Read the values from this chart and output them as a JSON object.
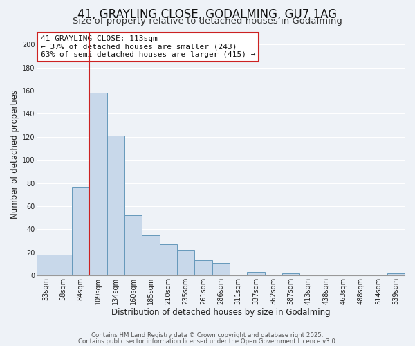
{
  "title": "41, GRAYLING CLOSE, GODALMING, GU7 1AG",
  "subtitle": "Size of property relative to detached houses in Godalming",
  "xlabel": "Distribution of detached houses by size in Godalming",
  "ylabel": "Number of detached properties",
  "bar_labels": [
    "33sqm",
    "58sqm",
    "84sqm",
    "109sqm",
    "134sqm",
    "160sqm",
    "185sqm",
    "210sqm",
    "235sqm",
    "261sqm",
    "286sqm",
    "311sqm",
    "337sqm",
    "362sqm",
    "387sqm",
    "413sqm",
    "438sqm",
    "463sqm",
    "488sqm",
    "514sqm",
    "539sqm"
  ],
  "bar_values": [
    18,
    18,
    77,
    158,
    121,
    52,
    35,
    27,
    22,
    13,
    11,
    0,
    3,
    0,
    2,
    0,
    0,
    0,
    0,
    0,
    2
  ],
  "bar_color": "#c8d8ea",
  "bar_edge_color": "#6699bb",
  "ylim": [
    0,
    210
  ],
  "yticks": [
    0,
    20,
    40,
    60,
    80,
    100,
    120,
    140,
    160,
    180,
    200
  ],
  "vline_index": 3,
  "vline_color": "#cc2222",
  "annotation_title": "41 GRAYLING CLOSE: 113sqm",
  "annotation_line1": "← 37% of detached houses are smaller (243)",
  "annotation_line2": "63% of semi-detached houses are larger (415) →",
  "annotation_box_color": "#ffffff",
  "annotation_border_color": "#cc2222",
  "footnote1": "Contains HM Land Registry data © Crown copyright and database right 2025.",
  "footnote2": "Contains public sector information licensed under the Open Government Licence v3.0.",
  "bg_color": "#eef2f7",
  "grid_color": "#ffffff",
  "title_fontsize": 12,
  "subtitle_fontsize": 9.5,
  "axis_label_fontsize": 8.5,
  "tick_fontsize": 7,
  "annot_fontsize": 8
}
